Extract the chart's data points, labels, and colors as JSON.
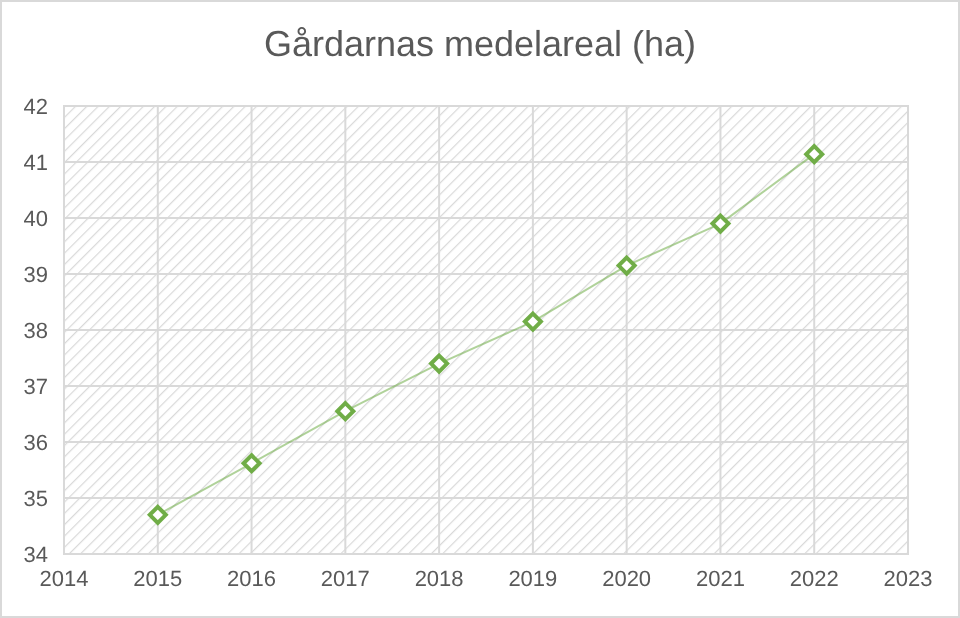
{
  "chart_data": {
    "type": "line",
    "title": "Gårdarnas medelareal (ha)",
    "x": [
      2015,
      2016,
      2017,
      2018,
      2019,
      2020,
      2021,
      2022
    ],
    "series": [
      {
        "color": "#70ad47",
        "values": [
          34.7,
          35.62,
          36.55,
          37.4,
          38.15,
          39.15,
          39.9,
          41.14
        ]
      }
    ],
    "xlim": [
      2014,
      2023
    ],
    "xticks": [
      2014,
      2015,
      2016,
      2017,
      2018,
      2019,
      2020,
      2021,
      2022,
      2023
    ],
    "ylim": [
      34,
      42
    ],
    "yticks": [
      34,
      35,
      36,
      37,
      38,
      39,
      40,
      41,
      42
    ],
    "grid": true,
    "marker": "diamond",
    "line_style": "solid"
  }
}
